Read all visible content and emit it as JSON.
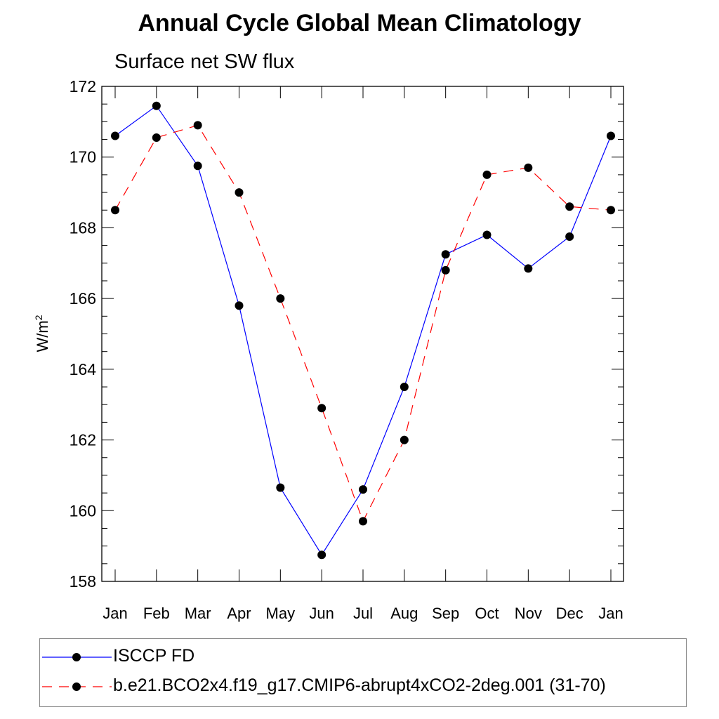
{
  "chart_data": {
    "type": "line",
    "title": "Annual Cycle Global Mean Climatology",
    "subtitle": "Surface net SW flux",
    "ylabel": "W/m",
    "ylabel_sup": "2",
    "xlabel": "",
    "categories": [
      "Jan",
      "Feb",
      "Mar",
      "Apr",
      "May",
      "Jun",
      "Jul",
      "Aug",
      "Sep",
      "Oct",
      "Nov",
      "Dec",
      "Jan"
    ],
    "ylim": [
      158,
      172
    ],
    "yticks": [
      158,
      160,
      162,
      164,
      166,
      168,
      170,
      172
    ],
    "grid": false,
    "legend_position": "bottom",
    "series": [
      {
        "name": "ISCCP FD",
        "color": "#0000ff",
        "dash": "solid",
        "marker": "filled-circle",
        "values": [
          170.6,
          171.45,
          169.75,
          165.8,
          160.65,
          158.75,
          160.6,
          163.5,
          167.25,
          167.8,
          166.85,
          167.75,
          170.6
        ]
      },
      {
        "name": "b.e21.BCO2x4.f19_g17.CMIP6-abrupt4xCO2-2deg.001 (31-70)",
        "color": "#ff0000",
        "dash": "dashed",
        "marker": "filled-circle",
        "values": [
          168.5,
          170.55,
          170.9,
          169.0,
          166.0,
          162.9,
          159.7,
          162.0,
          166.8,
          169.5,
          169.7,
          168.6,
          168.5
        ]
      }
    ]
  }
}
